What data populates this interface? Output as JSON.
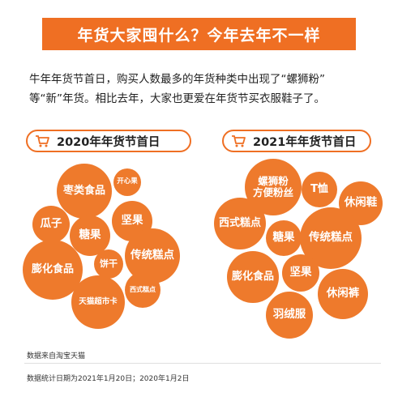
{
  "banner_title": "年货大家囤什么？今年去年不一样",
  "intro_line1": "牛年年货节首日，购买人数最多的年货种类中出现了“螺狮粉”",
  "intro_line2": "等“新”年货。相比去年，大家也更爱在年货节买衣服鞋子了。",
  "panel_2020": {
    "title": "2020年年货节首日",
    "items": [
      "枣类食品",
      "开心果",
      "瓜子",
      "坚果",
      "糖果",
      "传统糕点",
      "膨化食品",
      "饼干",
      "天猫超市卡",
      "西式糕点"
    ]
  },
  "panel_2021": {
    "title": "2021年年货节首日",
    "items": [
      "螺狮粉\n方便粉丝",
      "T恤",
      "休闲鞋",
      "西式糕点",
      "糖果",
      "传统糕点",
      "膨化食品",
      "坚果",
      "休闲裤",
      "羽绒服"
    ]
  },
  "source_note": "数据来自淘宝天猫",
  "date_note": "数据统计日期为2021年1月20日；2020年1月2日",
  "colors": {
    "accent": "#ef6f23",
    "bubble": "#ee7a2c"
  },
  "icons": {
    "pill_icon": "shopping-cart-icon"
  }
}
